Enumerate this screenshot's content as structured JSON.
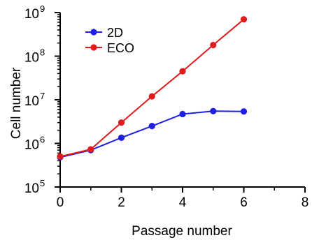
{
  "chart_data": {
    "type": "line",
    "title": "",
    "xlabel": "Passage number",
    "ylabel": "Cell number",
    "xlim": [
      0,
      8
    ],
    "ylim": [
      100000,
      1000000000
    ],
    "yscale": "log",
    "x_ticks": [
      0,
      2,
      4,
      6,
      8
    ],
    "x_tick_labels": [
      "0",
      "2",
      "4",
      "6",
      "8"
    ],
    "y_ticks": [
      100000,
      1000000,
      10000000,
      100000000,
      1000000000
    ],
    "y_tick_labels": [
      {
        "base": "10",
        "exp": "5"
      },
      {
        "base": "10",
        "exp": "6"
      },
      {
        "base": "10",
        "exp": "7"
      },
      {
        "base": "10",
        "exp": "8"
      },
      {
        "base": "10",
        "exp": "9"
      }
    ],
    "grid": false,
    "legend_position": "top-left",
    "series": [
      {
        "name": "2D",
        "color": "#1f1fe6",
        "x": [
          0,
          1,
          2,
          3,
          4,
          5,
          6
        ],
        "y": [
          480000,
          700000,
          1350000,
          2500000,
          4700000,
          5500000,
          5400000
        ]
      },
      {
        "name": "ECO",
        "color": "#e01b1b",
        "x": [
          0,
          1,
          2,
          3,
          4,
          5,
          6
        ],
        "y": [
          500000,
          730000,
          3000000,
          12000000,
          45000000,
          180000000,
          700000000
        ]
      }
    ]
  }
}
